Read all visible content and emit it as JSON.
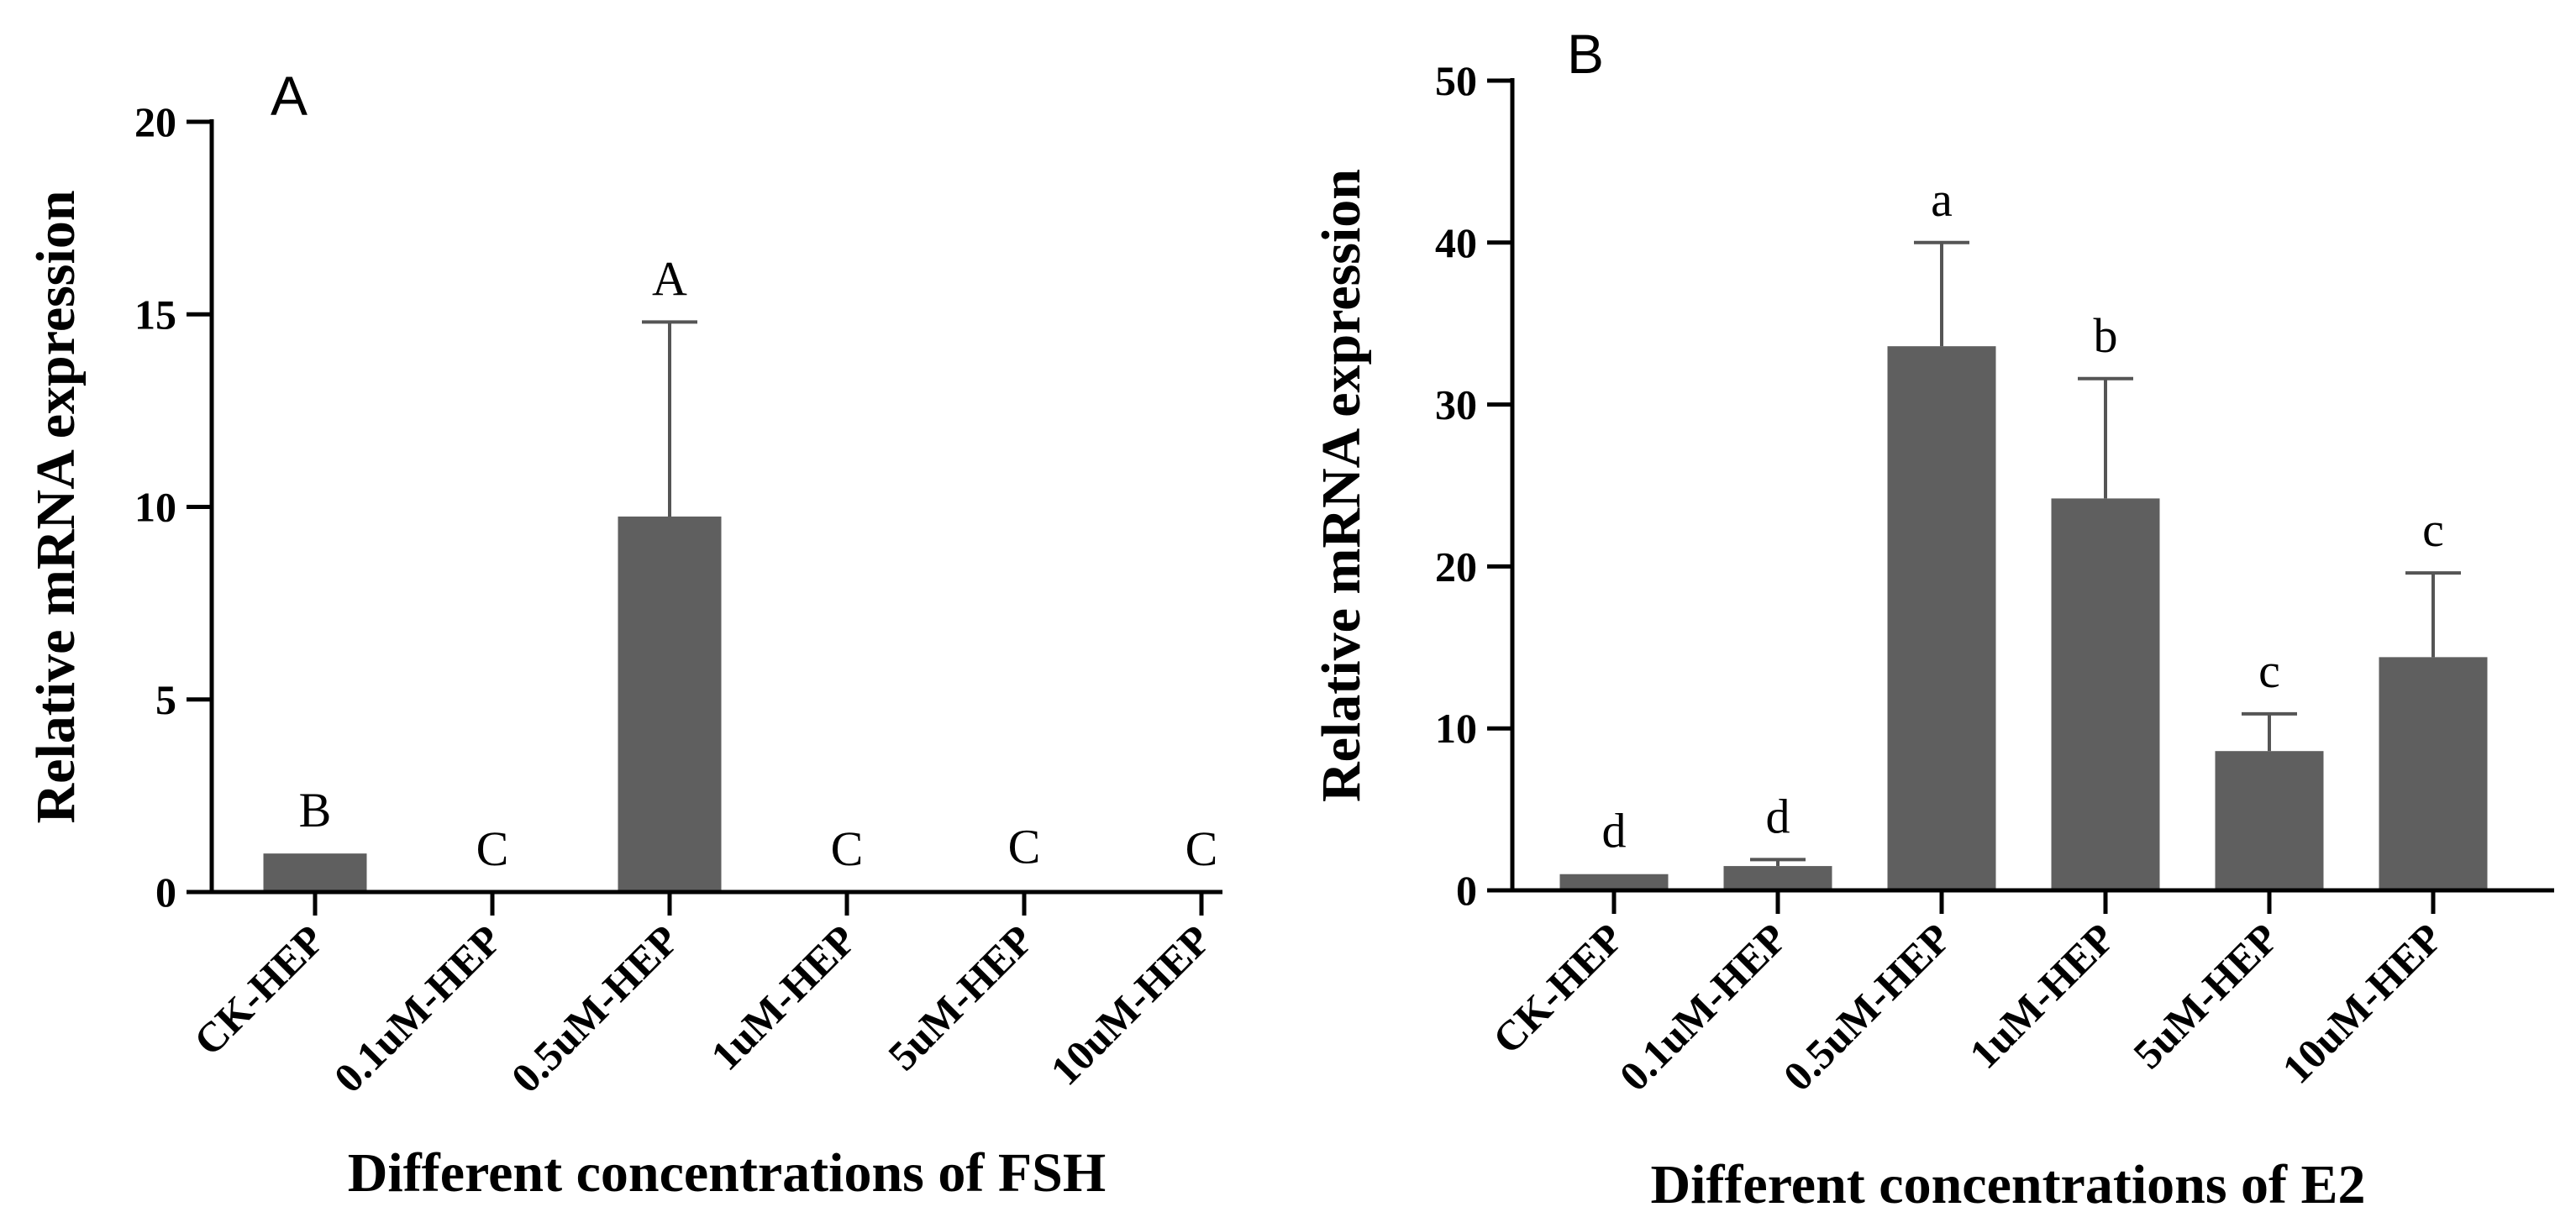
{
  "chart_data": [
    {
      "type": "bar",
      "panel": "A",
      "ylabel": "Relative mRNA expression",
      "xlabel": "Different concentrations of FSH",
      "ylim": [
        0,
        20
      ],
      "yticks": [
        0,
        5,
        10,
        15,
        20
      ],
      "grid": false,
      "categories": [
        "CK-HEP",
        "0.1uM-HEP",
        "0.5uM-HEP",
        "1uM-HEP",
        "5uM-HEP",
        "10uM-HEP"
      ],
      "values": [
        1.0,
        0.0,
        9.75,
        0.0,
        0.05,
        0.0
      ],
      "errors": [
        0.0,
        0.0,
        5.05,
        0.0,
        0.0,
        0.0
      ],
      "significance": [
        "B",
        "C",
        "A",
        "C",
        "C",
        "C"
      ],
      "color": "#5f5f5f"
    },
    {
      "type": "bar",
      "panel": "B",
      "ylabel": "Relative mRNA expression",
      "xlabel": "Different concentrations of E2",
      "ylim": [
        0,
        50
      ],
      "yticks": [
        0,
        10,
        20,
        30,
        40,
        50
      ],
      "grid": false,
      "categories": [
        "CK-HEP",
        "0.1uM-HEP",
        "0.5uM-HEP",
        "1uM-HEP",
        "5uM-HEP",
        "10uM-HEP"
      ],
      "values": [
        1.0,
        1.5,
        33.6,
        24.2,
        8.6,
        14.4
      ],
      "errors": [
        0.0,
        0.4,
        6.4,
        7.4,
        2.3,
        5.2
      ],
      "significance": [
        "d",
        "d",
        "a",
        "b",
        "c",
        "c"
      ],
      "color": "#5f5f5f"
    }
  ]
}
